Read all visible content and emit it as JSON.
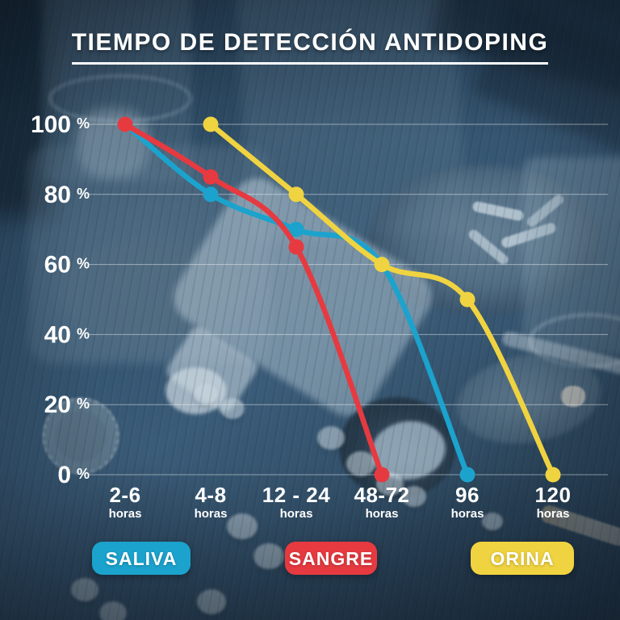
{
  "title": "TIEMPO DE DETECCIÓN ANTIDOPING",
  "chart_data": {
    "type": "line",
    "title": "TIEMPO DE DETECCIÓN ANTIDOPING",
    "xlabel": "",
    "ylabel": "",
    "ylim": [
      0,
      100
    ],
    "grid": true,
    "legend_position": "bottom",
    "yticks": [
      0,
      20,
      40,
      60,
      80,
      100
    ],
    "ytick_suffix": "%",
    "categories": [
      "2-6",
      "4-8",
      "12 - 24",
      "48-72",
      "96",
      "120"
    ],
    "category_sublabel": "horas",
    "series": [
      {
        "name": "SALIVA",
        "color": "#1ba3cd",
        "points": [
          {
            "category": "2-6",
            "value": 100
          },
          {
            "category": "4-8",
            "value": 80
          },
          {
            "category": "12 - 24",
            "value": 70
          },
          {
            "category": "48-72",
            "value": 60
          },
          {
            "category": "96",
            "value": 0
          }
        ]
      },
      {
        "name": "SANGRE",
        "color": "#e63a40",
        "points": [
          {
            "category": "2-6",
            "value": 100
          },
          {
            "category": "4-8",
            "value": 85
          },
          {
            "category": "12 - 24",
            "value": 65
          },
          {
            "category": "48-72",
            "value": 0
          }
        ]
      },
      {
        "name": "ORINA",
        "color": "#f0d340",
        "points": [
          {
            "category": "4-8",
            "value": 100
          },
          {
            "category": "12 - 24",
            "value": 80
          },
          {
            "category": "48-72",
            "value": 60
          },
          {
            "category": "96",
            "value": 50
          },
          {
            "category": "120",
            "value": 0
          }
        ]
      }
    ]
  },
  "legend": [
    {
      "label": "SALIVA",
      "color": "#1ba3cd"
    },
    {
      "label": "SANGRE",
      "color": "#e63a40"
    },
    {
      "label": "ORINA",
      "color": "#f0d340"
    }
  ]
}
